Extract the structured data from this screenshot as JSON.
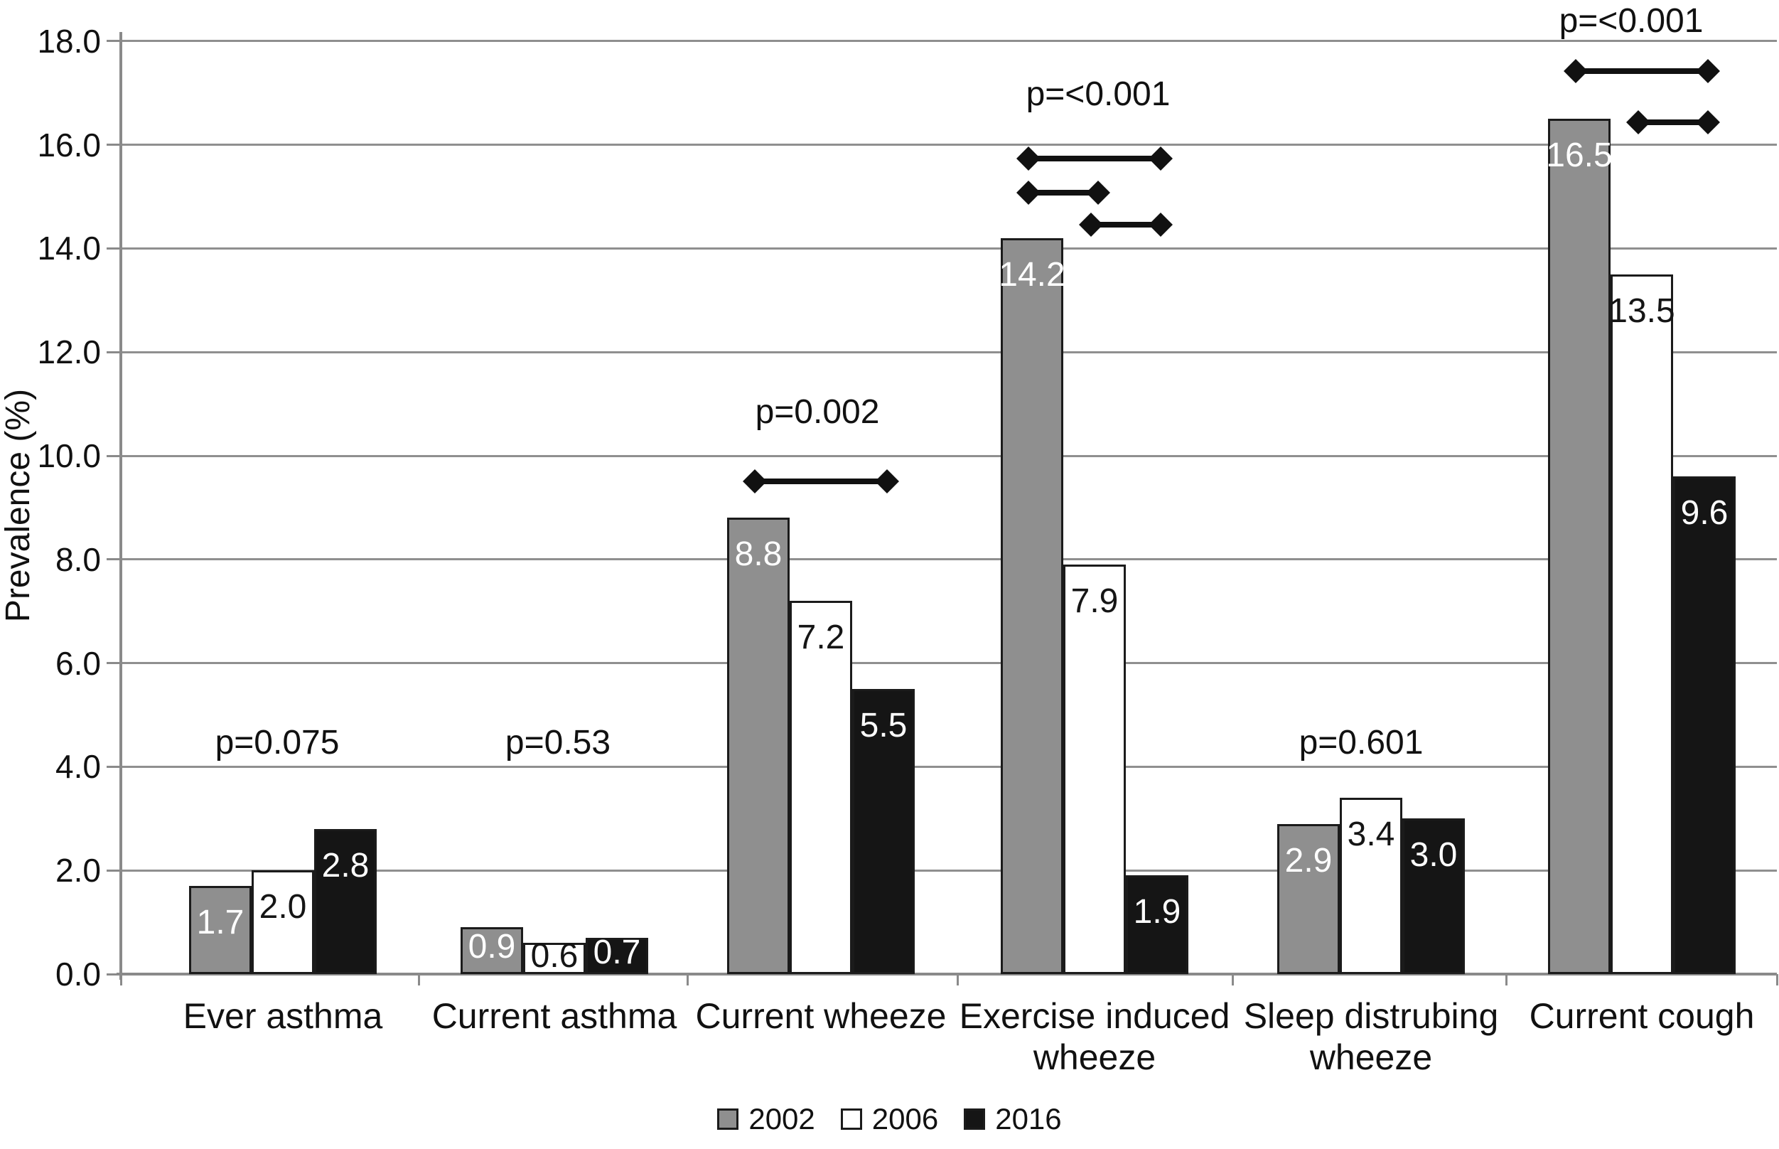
{
  "figure": {
    "background": "#ffffff",
    "y_axis_title": "Prevalence (%)"
  },
  "chart_data": {
    "type": "bar",
    "title": "",
    "xlabel": "",
    "ylabel": "Prevalence (%)",
    "ylim": [
      0,
      18
    ],
    "ytick_step": 2,
    "ytick_labels": [
      "0.0",
      "2.0",
      "4.0",
      "6.0",
      "8.0",
      "10.0",
      "12.0",
      "14.0",
      "16.0",
      "18.0"
    ],
    "grid": "horizontal",
    "legend_position": "bottom",
    "categories": [
      "Ever asthma",
      "Current asthma",
      "Current wheeze",
      "Exercise induced wheeze",
      "Sleep distrubing wheeze",
      "Current cough"
    ],
    "category_label_lines": [
      [
        "Ever asthma"
      ],
      [
        "Current asthma"
      ],
      [
        "Current wheeze"
      ],
      [
        "Exercise induced",
        "wheeze"
      ],
      [
        "Sleep distrubing",
        "wheeze"
      ],
      [
        "Current cough"
      ]
    ],
    "series": [
      {
        "name": "2002",
        "fill": "#8f8f8f",
        "label_color": "#ffffff",
        "values": [
          1.7,
          0.9,
          8.8,
          14.2,
          2.9,
          16.5
        ]
      },
      {
        "name": "2006",
        "fill": "#ffffff",
        "label_color": "#151515",
        "values": [
          2.0,
          0.6,
          7.2,
          7.9,
          3.4,
          13.5
        ]
      },
      {
        "name": "2016",
        "fill": "#151515",
        "label_color": "#ffffff",
        "values": [
          2.8,
          0.7,
          5.5,
          1.9,
          3.0,
          9.6
        ]
      }
    ],
    "p_values": [
      {
        "category": "Ever asthma",
        "text": "p=0.075",
        "y_value": 4.46
      },
      {
        "category": "Current asthma",
        "text": "p=0.53",
        "y_value": 4.46
      },
      {
        "category": "Current wheeze",
        "text": "p=0.002",
        "y_value": 10.84
      },
      {
        "category": "Exercise induced wheeze",
        "text": "p=<0.001",
        "y_value": 16.97
      },
      {
        "category": "Sleep distrubing wheeze",
        "text": "p=0.601",
        "y_value": 4.46
      },
      {
        "category": "Current cough",
        "text": "p=<0.001",
        "y_value": 18.38
      }
    ],
    "significance_arrows": [
      {
        "category": "Current wheeze",
        "from": "2002",
        "to": "2016",
        "y_value": 9.51
      },
      {
        "category": "Exercise induced wheeze",
        "from": "2002",
        "to": "2016",
        "y_value": 15.73
      },
      {
        "category": "Exercise induced wheeze",
        "from": "2002",
        "to": "2006",
        "y_value": 15.07
      },
      {
        "category": "Exercise induced wheeze",
        "from": "2006",
        "to": "2016",
        "y_value": 14.46
      },
      {
        "category": "Current cough",
        "from": "2002",
        "to": "2016",
        "y_value": 17.42
      },
      {
        "category": "Current cough",
        "from": "2006",
        "to": "2016",
        "y_value": 16.43
      }
    ],
    "legend": [
      {
        "label": "2002",
        "fill": "#8f8f8f"
      },
      {
        "label": "2006",
        "fill": "#ffffff"
      },
      {
        "label": "2016",
        "fill": "#151515"
      }
    ]
  }
}
